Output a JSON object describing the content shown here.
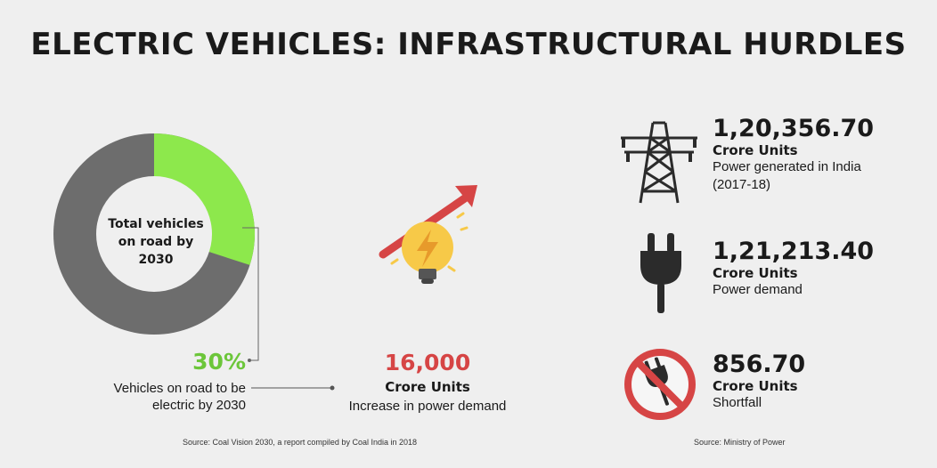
{
  "title": "ELECTRIC VEHICLES: INFRASTRUCTURAL HURDLES",
  "donut": {
    "center_label": "Total vehicles on road by 2030",
    "share_percent": 30,
    "colors": {
      "share": "#8de84c",
      "rest": "#6d6d6d",
      "hole": "#efefef"
    }
  },
  "ev_share": {
    "value": "30%",
    "description": "Vehicles on road to be electric by 2030"
  },
  "demand_increase": {
    "value": "16,000",
    "unit": "Crore Units",
    "description": "Increase in power demand",
    "icon": "bulb-rising-arrow-icon"
  },
  "stats": [
    {
      "value": "1,20,356.70",
      "unit": "Crore Units",
      "description": "Power generated in India (2017-18)",
      "icon": "transmission-tower-icon"
    },
    {
      "value": "1,21,213.40",
      "unit": "Crore Units",
      "description": "Power demand",
      "icon": "plug-icon"
    },
    {
      "value": "856.70",
      "unit": "Crore Units",
      "description": "Shortfall",
      "icon": "no-plug-icon"
    }
  ],
  "sources": {
    "left": "Source: Coal Vision 2030, a report compiled by Coal India in 2018",
    "right": "Source: Ministry of Power"
  },
  "colors": {
    "background": "#efefef",
    "green": "#6cc63a",
    "red": "#d64545",
    "dark": "#2b2b2b"
  }
}
